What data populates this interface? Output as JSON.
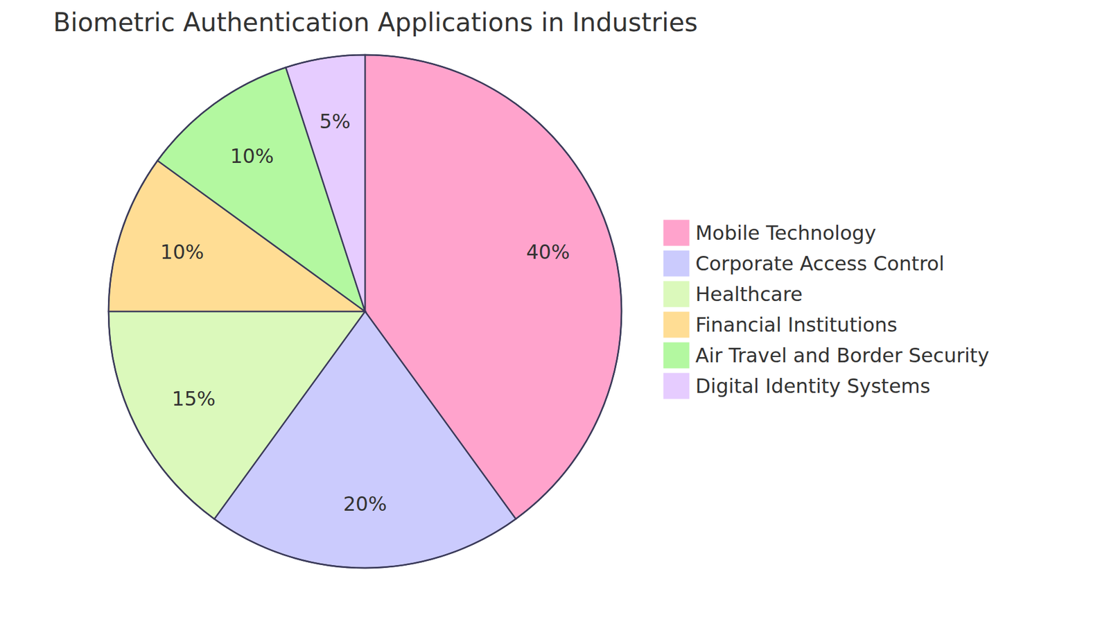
{
  "chart_data": {
    "type": "pie",
    "title": "Biometric Authentication Applications in Industries",
    "categories": [
      "Mobile Technology",
      "Corporate Access Control",
      "Healthcare",
      "Financial Institutions",
      "Air Travel and Border Security",
      "Digital Identity Systems"
    ],
    "values": [
      40,
      20,
      15,
      10,
      10,
      5
    ],
    "value_labels": [
      "40%",
      "20%",
      "15%",
      "10%",
      "10%",
      "5%"
    ],
    "colors": [
      "#ffa3cc",
      "#cbcbfd",
      "#dbf9bb",
      "#ffdd94",
      "#b3f8a0",
      "#e6ccff"
    ],
    "data_labels": true,
    "legend": "right"
  }
}
